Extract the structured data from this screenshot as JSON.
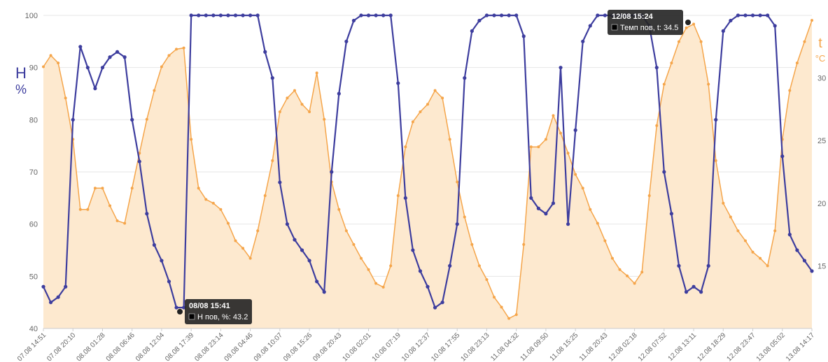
{
  "chart_data": {
    "type": "line",
    "ylabel": "H",
    "yunit": "%",
    "y2label": "t",
    "y2unit": "°C",
    "categories": [
      "07.08 14:51",
      null,
      null,
      null,
      "07.08 20:10",
      null,
      null,
      null,
      "08.08 01:28",
      null,
      null,
      null,
      "08.08 06:46",
      null,
      null,
      null,
      "08.08 12:04",
      null,
      null,
      null,
      "08.08 17:39",
      null,
      null,
      null,
      "08.08 23:14",
      null,
      null,
      null,
      "09.08 04:46",
      null,
      null,
      null,
      "09.08 10:07",
      null,
      null,
      null,
      "09.08 15:26",
      null,
      null,
      null,
      "09.08 20:43",
      null,
      null,
      null,
      "10.08 02:01",
      null,
      null,
      null,
      "10.08 07:19",
      null,
      null,
      null,
      "10.08 12:37",
      null,
      null,
      null,
      "10.08 17:55",
      null,
      null,
      null,
      "10.08 23:13",
      null,
      null,
      null,
      "11.08 04:32",
      null,
      null,
      null,
      "11.08 09:50",
      null,
      null,
      null,
      "11.08 15:25",
      null,
      null,
      null,
      "11.08 20:43",
      null,
      null,
      null,
      "12.08 02:18",
      null,
      null,
      null,
      "12.08 07:52",
      null,
      null,
      null,
      "12.08 13:11",
      null,
      null,
      null,
      "12.08 18:29",
      null,
      null,
      null,
      "12.08 23:47",
      null,
      null,
      null,
      "13.08 05:02",
      null,
      null,
      null,
      "13.08 14:17"
    ],
    "series": [
      {
        "color": "#f5a54a",
        "fill": "#fde9cf",
        "axis": "y2",
        "values": [
          30.9,
          31.8,
          31.2,
          28.4,
          25.1,
          19.5,
          19.5,
          21.2,
          21.2,
          19.8,
          18.6,
          18.4,
          21.2,
          24,
          26.7,
          29,
          30.9,
          31.8,
          32.3,
          32.4,
          25.1,
          21.2,
          20.3,
          20,
          19.5,
          18.4,
          17,
          16.4,
          15.6,
          17.8,
          20.6,
          23.4,
          27.3,
          28.4,
          29,
          27.9,
          27.3,
          30.4,
          26.7,
          21.7,
          19.5,
          17.8,
          16.7,
          15.6,
          14.7,
          13.6,
          13.3,
          15,
          20.6,
          24.5,
          26.5,
          27.3,
          27.9,
          29,
          28.4,
          25.1,
          21.7,
          18.9,
          16.7,
          15,
          13.9,
          12.5,
          11.7,
          10.8,
          11.1,
          16.7,
          24.5,
          24.5,
          25.1,
          27,
          25.6,
          24,
          22.3,
          21.2,
          19.5,
          18.4,
          17,
          15.6,
          14.7,
          14.2,
          13.6,
          14.5,
          20.6,
          26.2,
          29.5,
          31.2,
          32.9,
          34,
          34.3,
          32.9,
          29.5,
          23.4,
          20,
          18.9,
          17.8,
          17,
          16.1,
          15.6,
          15,
          17.8,
          25.1,
          29,
          31.2,
          32.9,
          34.6
        ]
      },
      {
        "color": "#3d3d9e",
        "axis": "y",
        "values": [
          48,
          45,
          46,
          48,
          80,
          94,
          90,
          86,
          90,
          92,
          93,
          92,
          80,
          72,
          62,
          56,
          53,
          49,
          44,
          44,
          100,
          100,
          100,
          100,
          100,
          100,
          100,
          100,
          100,
          100,
          93,
          88,
          68,
          60,
          57,
          55,
          53,
          49,
          47,
          70,
          85,
          95,
          99,
          100,
          100,
          100,
          100,
          100,
          87,
          65,
          55,
          51,
          48,
          44,
          45,
          52,
          60,
          88,
          97,
          99,
          100,
          100,
          100,
          100,
          100,
          96,
          65,
          63,
          62,
          64,
          90,
          60,
          78,
          95,
          98,
          100,
          100,
          100,
          100,
          100,
          100,
          100,
          98,
          90,
          70,
          62,
          52,
          47,
          48,
          47,
          52,
          80,
          97,
          99,
          100,
          100,
          100,
          100,
          100,
          98,
          73,
          58,
          55,
          53,
          51
        ]
      }
    ],
    "ylim": [
      40,
      100
    ],
    "yticks": [
      40,
      50,
      60,
      70,
      80,
      90,
      100
    ],
    "y2lim": [
      10,
      35
    ],
    "y2ticks": [
      15,
      20,
      25,
      30
    ],
    "grid": true,
    "tooltips": [
      {
        "title": "08/08 15:41",
        "text": "H пов, %: 43.2"
      },
      {
        "title": "12/08 15:24",
        "text": "Темп пов, t: 34.5"
      }
    ]
  }
}
